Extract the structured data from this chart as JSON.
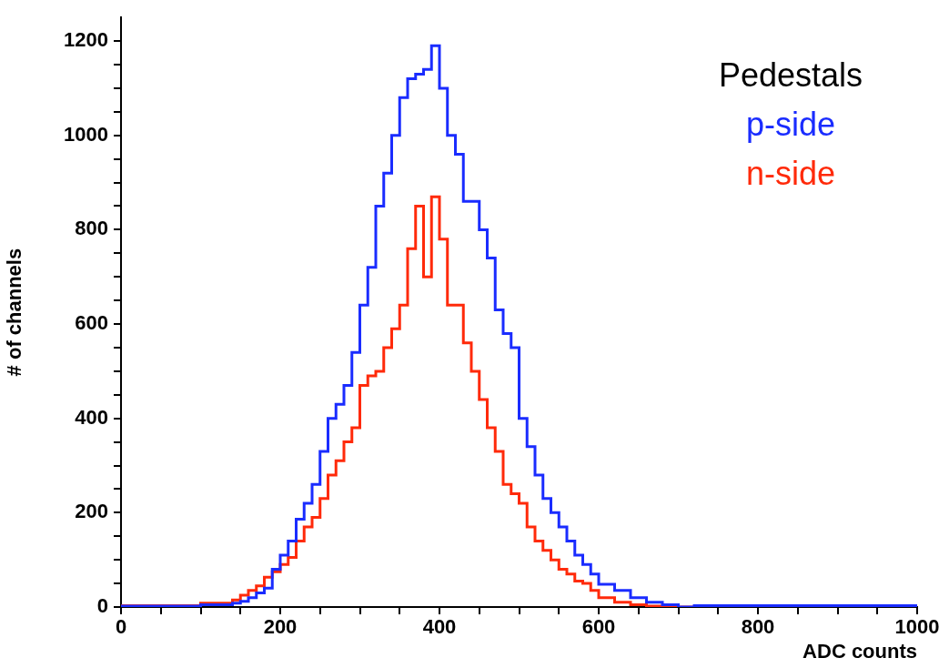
{
  "chart_data": {
    "type": "step",
    "xlabel": "ADC counts",
    "ylabel": "# of channels",
    "legend_title": "Pedestals",
    "legend": "top right",
    "xlim": [
      0,
      1000
    ],
    "ylim": [
      0,
      1250
    ],
    "xticks": [
      0,
      {
        "value": 50,
        "label": null
      },
      {
        "value": 100,
        "label": null
      },
      {
        "value": 150,
        "label": null
      },
      200,
      {
        "value": 250,
        "label": null
      },
      {
        "value": 300,
        "label": null
      },
      {
        "value": 350,
        "label": null
      },
      400,
      {
        "value": 450,
        "label": null
      },
      {
        "value": 500,
        "label": null
      },
      {
        "value": 550,
        "label": null
      },
      600,
      {
        "value": 650,
        "label": null
      },
      {
        "value": 700,
        "label": null
      },
      {
        "value": 750,
        "label": null
      },
      800,
      {
        "value": 850,
        "label": null
      },
      {
        "value": 900,
        "label": null
      },
      {
        "value": 950,
        "label": null
      },
      1000
    ],
    "yticks": [
      0,
      {
        "value": 50,
        "label": null
      },
      {
        "value": 100,
        "label": null
      },
      {
        "value": 150,
        "label": null
      },
      200,
      {
        "value": 250,
        "label": null
      },
      {
        "value": 300,
        "label": null
      },
      {
        "value": 350,
        "label": null
      },
      400,
      {
        "value": 450,
        "label": null
      },
      {
        "value": 500,
        "label": null
      },
      {
        "value": 550,
        "label": null
      },
      600,
      {
        "value": 650,
        "label": null
      },
      {
        "value": 700,
        "label": null
      },
      {
        "value": 750,
        "label": null
      },
      800,
      {
        "value": 850,
        "label": null
      },
      {
        "value": 900,
        "label": null
      },
      {
        "value": 950,
        "label": null
      },
      1000,
      {
        "value": 1050,
        "label": null
      },
      {
        "value": 1100,
        "label": null
      },
      {
        "value": 1150,
        "label": null
      },
      1200
    ],
    "series": [
      {
        "name": "p-side",
        "color": "#1a2cff",
        "x": [
          0,
          100,
          140,
          150,
          160,
          170,
          180,
          190,
          200,
          210,
          220,
          230,
          240,
          250,
          260,
          270,
          280,
          290,
          300,
          310,
          320,
          330,
          340,
          350,
          360,
          370,
          380,
          390,
          400,
          410,
          420,
          430,
          440,
          450,
          460,
          470,
          480,
          490,
          500,
          510,
          520,
          530,
          540,
          550,
          560,
          570,
          580,
          590,
          600,
          620,
          640,
          660,
          680,
          700,
          720,
          850,
          1000
        ],
        "values": [
          0,
          2,
          5,
          8,
          12,
          20,
          30,
          40,
          80,
          110,
          140,
          186,
          220,
          260,
          330,
          400,
          430,
          470,
          540,
          640,
          720,
          850,
          920,
          1000,
          1080,
          1120,
          1130,
          1140,
          1190,
          1100,
          1000,
          960,
          860,
          860,
          800,
          740,
          630,
          580,
          550,
          400,
          340,
          280,
          230,
          200,
          170,
          140,
          110,
          90,
          70,
          48,
          35,
          20,
          10,
          5,
          0,
          3,
          3
        ]
      },
      {
        "name": "n-side",
        "color": "#ff2a0a",
        "x": [
          0,
          100,
          140,
          150,
          160,
          170,
          180,
          190,
          200,
          210,
          220,
          230,
          240,
          250,
          260,
          270,
          280,
          290,
          300,
          310,
          320,
          330,
          340,
          350,
          360,
          370,
          380,
          390,
          400,
          410,
          420,
          430,
          440,
          450,
          460,
          470,
          480,
          490,
          500,
          510,
          520,
          530,
          540,
          550,
          560,
          570,
          580,
          590,
          600,
          620,
          640,
          660,
          680,
          700,
          1000
        ],
        "values": [
          0,
          3,
          8,
          15,
          25,
          35,
          45,
          63,
          75,
          90,
          105,
          140,
          170,
          190,
          230,
          280,
          310,
          350,
          380,
          470,
          490,
          500,
          550,
          590,
          640,
          760,
          850,
          700,
          870,
          780,
          640,
          640,
          560,
          500,
          440,
          380,
          330,
          260,
          240,
          220,
          170,
          140,
          120,
          100,
          80,
          70,
          55,
          50,
          35,
          20,
          10,
          5,
          2,
          0,
          0
        ]
      }
    ]
  }
}
